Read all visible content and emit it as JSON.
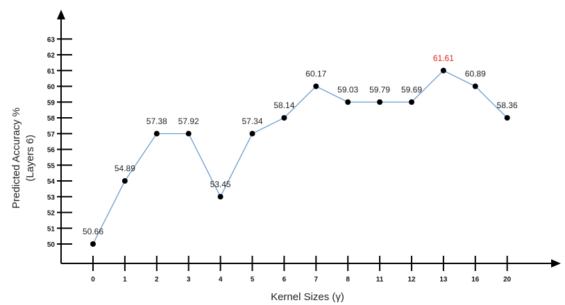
{
  "chart_data": {
    "type": "line",
    "title": "",
    "xlabel": "Kernel Sizes (γ)",
    "ylabel_line1": "Predicted Accuracy %",
    "ylabel_line2": "(Layers 6)",
    "categories": [
      "0",
      "1",
      "2",
      "3",
      "4",
      "5",
      "6",
      "7",
      "8",
      "11",
      "12",
      "13",
      "16",
      "20"
    ],
    "y_ticks": [
      "50",
      "51",
      "52",
      "53",
      "54",
      "55",
      "56",
      "57",
      "58",
      "59",
      "60",
      "61",
      "62",
      "63"
    ],
    "ylim": [
      50,
      63
    ],
    "grid": false,
    "series": [
      {
        "values": [
          50.66,
          54.89,
          57.38,
          57.92,
          53.45,
          57.34,
          58.14,
          60.17,
          59.03,
          59.79,
          59.69,
          61.61,
          60.89,
          58.36
        ],
        "plotted_level": [
          50,
          54,
          57,
          57,
          53,
          57,
          58,
          60,
          59,
          59,
          59,
          61,
          60,
          58
        ],
        "data_labels": [
          "50.66",
          "54.89",
          "57.38",
          "57.92",
          "53.45",
          "57.34",
          "58.14",
          "60.17",
          "59.03",
          "59.79",
          "59.69",
          "61.61",
          "60.89",
          "58.36"
        ],
        "highlight_index": 11
      }
    ],
    "colors": {
      "line": "#6a9bd1",
      "point": "#000000",
      "highlight_label": "#e0211c",
      "label": "#222222",
      "axis": "#000000"
    }
  }
}
